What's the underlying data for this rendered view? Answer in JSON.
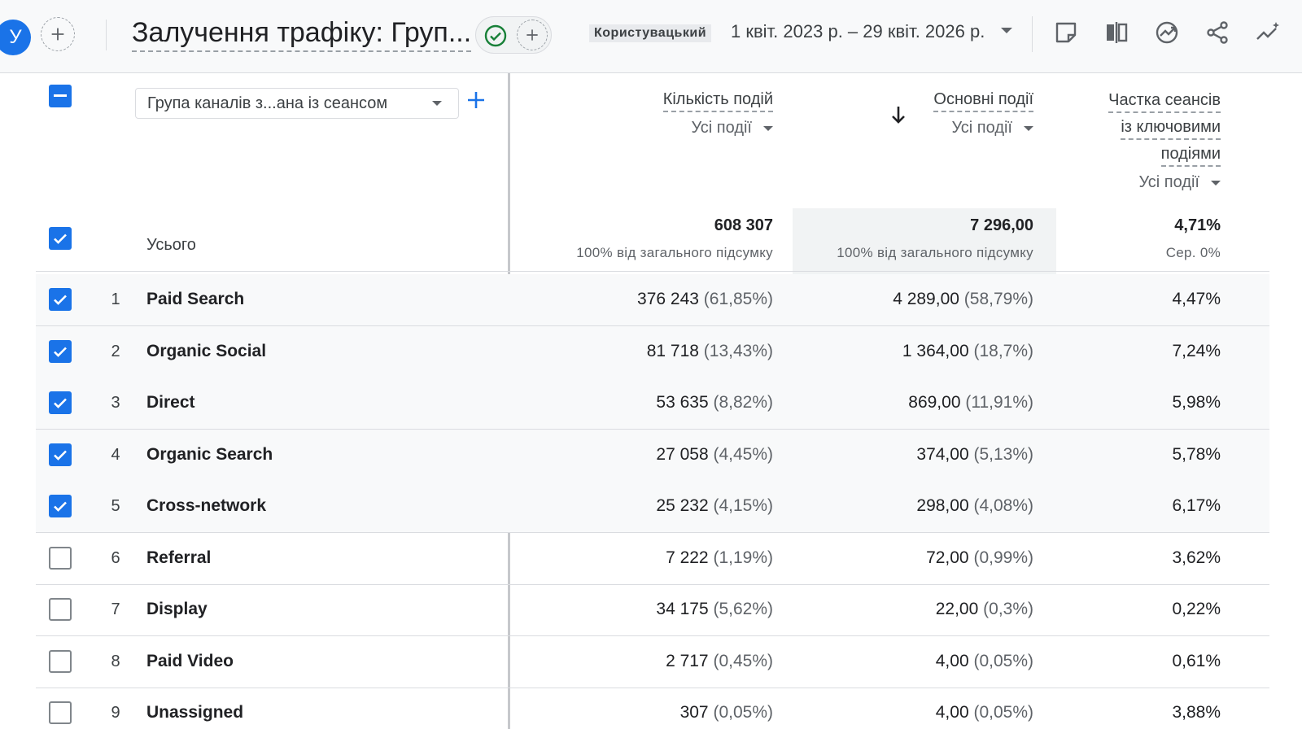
{
  "header": {
    "avatar_letter": "У",
    "title": "Залучення трафіку: Груп...",
    "date_custom_label": "Користувацький",
    "date_range": "1 квіт. 2023 р. – 29 квіт. 2026 р."
  },
  "table": {
    "dimension_label": "Група каналів з...ана із сеансом",
    "metrics": [
      {
        "name": "Кількість подій",
        "filter": "Усі події"
      },
      {
        "name": "Основні події",
        "filter": "Усі події",
        "sorted": "desc"
      },
      {
        "name_lines": [
          "Частка сеансів",
          "із ключовими",
          "подіями"
        ],
        "filter": "Усі події"
      }
    ],
    "totals": {
      "label": "Усього",
      "values": [
        "608 307",
        "7 296,00",
        "4,71%"
      ],
      "subs": [
        "100% від загального підсумку",
        "100% від загального підсумку",
        "Сер. 0%"
      ]
    },
    "rows": [
      {
        "idx": "1",
        "name": "Paid Search",
        "checked": true,
        "m1": "376 243",
        "m1p": "(61,85%)",
        "m2": "4 289,00",
        "m2p": "(58,79%)",
        "m3": "4,47%"
      },
      {
        "idx": "2",
        "name": "Organic Social",
        "checked": true,
        "m1": "81 718",
        "m1p": "(13,43%)",
        "m2": "1 364,00",
        "m2p": "(18,7%)",
        "m3": "7,24%"
      },
      {
        "idx": "3",
        "name": "Direct",
        "checked": true,
        "m1": "53 635",
        "m1p": "(8,82%)",
        "m2": "869,00",
        "m2p": "(11,91%)",
        "m3": "5,98%"
      },
      {
        "idx": "4",
        "name": "Organic Search",
        "checked": true,
        "m1": "27 058",
        "m1p": "(4,45%)",
        "m2": "374,00",
        "m2p": "(5,13%)",
        "m3": "5,78%"
      },
      {
        "idx": "5",
        "name": "Cross-network",
        "checked": true,
        "m1": "25 232",
        "m1p": "(4,15%)",
        "m2": "298,00",
        "m2p": "(4,08%)",
        "m3": "6,17%"
      },
      {
        "idx": "6",
        "name": "Referral",
        "checked": false,
        "m1": "7 222",
        "m1p": "(1,19%)",
        "m2": "72,00",
        "m2p": "(0,99%)",
        "m3": "3,62%"
      },
      {
        "idx": "7",
        "name": "Display",
        "checked": false,
        "m1": "34 175",
        "m1p": "(5,62%)",
        "m2": "22,00",
        "m2p": "(0,3%)",
        "m3": "0,22%"
      },
      {
        "idx": "8",
        "name": "Paid Video",
        "checked": false,
        "m1": "2 717",
        "m1p": "(0,45%)",
        "m2": "4,00",
        "m2p": "(0,05%)",
        "m3": "0,61%"
      },
      {
        "idx": "9",
        "name": "Unassigned",
        "checked": false,
        "m1": "307",
        "m1p": "(0,05%)",
        "m2": "4,00",
        "m2p": "(0,05%)",
        "m3": "3,88%"
      }
    ]
  },
  "colors": {
    "accent": "#1a73e8",
    "check_green": "#188038"
  }
}
